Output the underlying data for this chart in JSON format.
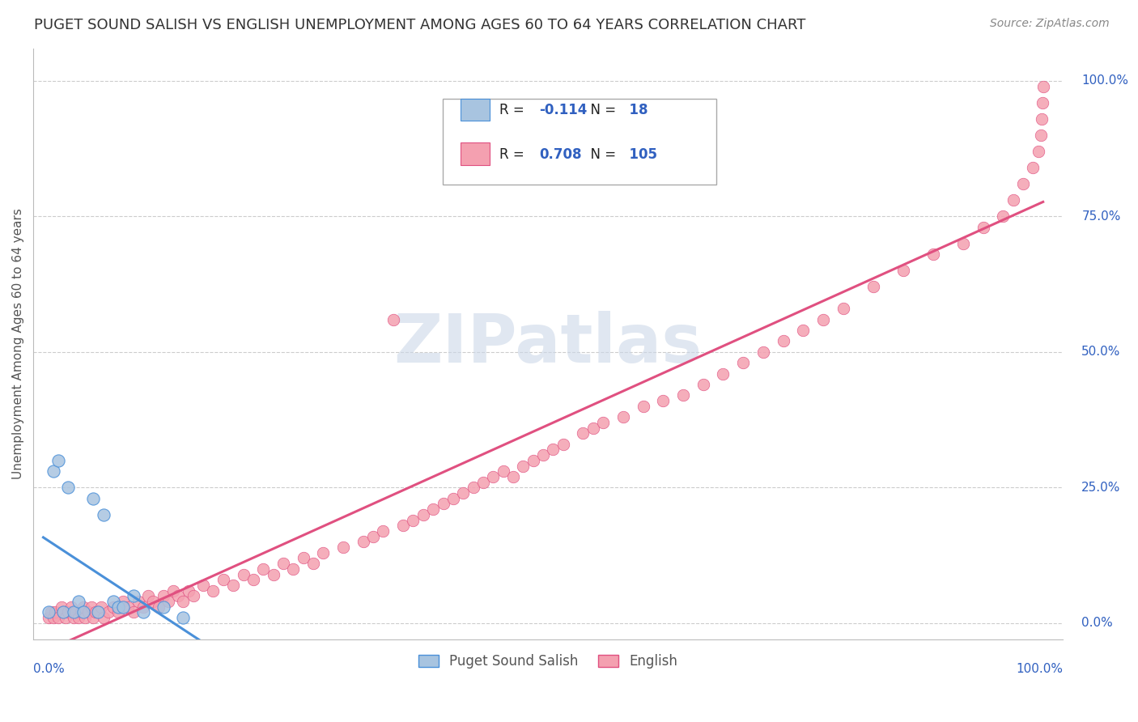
{
  "title": "PUGET SOUND SALISH VS ENGLISH UNEMPLOYMENT AMONG AGES 60 TO 64 YEARS CORRELATION CHART",
  "source": "Source: ZipAtlas.com",
  "ylabel": "Unemployment Among Ages 60 to 64 years",
  "r_salish": -0.114,
  "n_salish": 18,
  "r_english": 0.708,
  "n_english": 105,
  "color_salish_fill": "#a8c4e0",
  "color_salish_edge": "#4a90d9",
  "color_english_fill": "#f4a0b0",
  "color_english_edge": "#e05080",
  "color_blue_text": "#3060c0",
  "color_axis_text": "#555555",
  "color_title": "#333333",
  "color_source": "#888888",
  "color_grid": "#cccccc",
  "color_watermark": "#ccd8e8",
  "watermark_text": "ZIPatlas",
  "ytick_labels": [
    "0.0%",
    "25.0%",
    "50.0%",
    "75.0%",
    "100.0%"
  ],
  "ytick_values": [
    0.0,
    0.25,
    0.5,
    0.75,
    1.0
  ],
  "salish_x": [
    0.005,
    0.01,
    0.015,
    0.02,
    0.025,
    0.03,
    0.035,
    0.04,
    0.05,
    0.055,
    0.06,
    0.07,
    0.075,
    0.08,
    0.09,
    0.1,
    0.12,
    0.14
  ],
  "salish_y": [
    0.02,
    0.28,
    0.3,
    0.02,
    0.25,
    0.02,
    0.04,
    0.02,
    0.23,
    0.02,
    0.2,
    0.04,
    0.03,
    0.03,
    0.05,
    0.02,
    0.03,
    0.01
  ],
  "english_x": [
    0.005,
    0.008,
    0.01,
    0.012,
    0.015,
    0.018,
    0.02,
    0.022,
    0.025,
    0.028,
    0.03,
    0.032,
    0.035,
    0.038,
    0.04,
    0.042,
    0.045,
    0.048,
    0.05,
    0.052,
    0.055,
    0.058,
    0.06,
    0.065,
    0.07,
    0.075,
    0.08,
    0.085,
    0.09,
    0.095,
    0.1,
    0.105,
    0.11,
    0.115,
    0.12,
    0.125,
    0.13,
    0.135,
    0.14,
    0.145,
    0.15,
    0.16,
    0.17,
    0.18,
    0.19,
    0.2,
    0.21,
    0.22,
    0.23,
    0.24,
    0.25,
    0.26,
    0.27,
    0.28,
    0.3,
    0.32,
    0.33,
    0.34,
    0.35,
    0.36,
    0.37,
    0.38,
    0.39,
    0.4,
    0.41,
    0.42,
    0.43,
    0.44,
    0.45,
    0.46,
    0.47,
    0.48,
    0.49,
    0.5,
    0.51,
    0.52,
    0.54,
    0.55,
    0.56,
    0.58,
    0.6,
    0.62,
    0.64,
    0.66,
    0.68,
    0.7,
    0.72,
    0.74,
    0.76,
    0.78,
    0.8,
    0.83,
    0.86,
    0.89,
    0.92,
    0.94,
    0.96,
    0.97,
    0.98,
    0.99,
    0.995,
    0.998,
    0.999,
    0.9995,
    0.9999
  ],
  "english_y": [
    0.01,
    0.02,
    0.01,
    0.02,
    0.01,
    0.03,
    0.02,
    0.01,
    0.02,
    0.03,
    0.01,
    0.02,
    0.01,
    0.02,
    0.03,
    0.01,
    0.02,
    0.03,
    0.01,
    0.02,
    0.02,
    0.03,
    0.01,
    0.02,
    0.03,
    0.02,
    0.04,
    0.03,
    0.02,
    0.04,
    0.03,
    0.05,
    0.04,
    0.03,
    0.05,
    0.04,
    0.06,
    0.05,
    0.04,
    0.06,
    0.05,
    0.07,
    0.06,
    0.08,
    0.07,
    0.09,
    0.08,
    0.1,
    0.09,
    0.11,
    0.1,
    0.12,
    0.11,
    0.13,
    0.14,
    0.15,
    0.16,
    0.17,
    0.56,
    0.18,
    0.19,
    0.2,
    0.21,
    0.22,
    0.23,
    0.24,
    0.25,
    0.26,
    0.27,
    0.28,
    0.27,
    0.29,
    0.3,
    0.31,
    0.32,
    0.33,
    0.35,
    0.36,
    0.37,
    0.38,
    0.4,
    0.41,
    0.42,
    0.44,
    0.46,
    0.48,
    0.5,
    0.52,
    0.54,
    0.56,
    0.58,
    0.62,
    0.65,
    0.68,
    0.7,
    0.73,
    0.75,
    0.78,
    0.81,
    0.84,
    0.87,
    0.9,
    0.93,
    0.96,
    0.99
  ]
}
